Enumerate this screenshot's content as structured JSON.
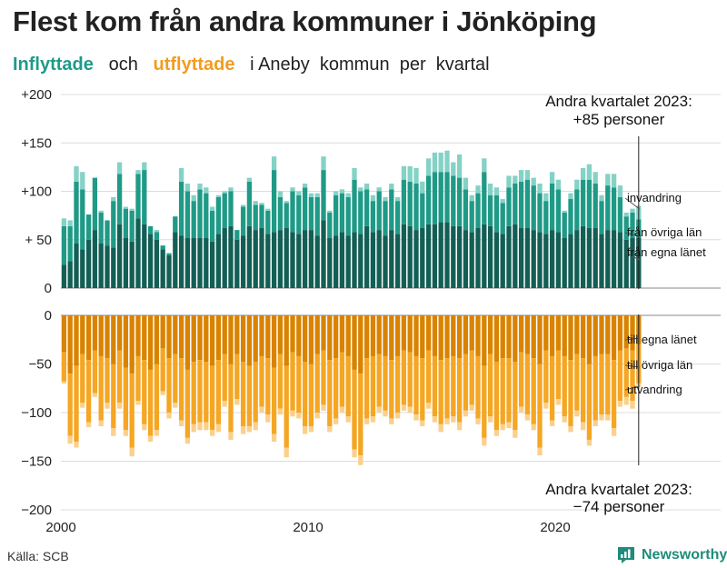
{
  "title": "Flest kom från andra kommuner i Jönköping",
  "subtitle": {
    "in_word": "Inflyttade",
    "and_word": "och",
    "out_word": "utflyttade",
    "rest": "i Aneby  kommun  per  kvartal"
  },
  "source": "Källa: SCB",
  "brand": {
    "name": "Newsworthy",
    "icon": "newsworthy-logo-icon"
  },
  "colors": {
    "in_dark": "#135f55",
    "in_mid": "#1f9a87",
    "in_light": "#84d2c6",
    "out_dark": "#d98300",
    "out_mid": "#f5a623",
    "out_light": "#fbd08c",
    "grid": "#dcdcdc"
  },
  "chart_data": {
    "type": "bar",
    "stacked": true,
    "period": "quarterly, 2000 Q1 – 2023 Q2",
    "xlim": [
      2000,
      2023.5
    ],
    "xticks": [
      "2000",
      "2010",
      "2020"
    ],
    "top_panel": {
      "ylim": [
        0,
        200
      ],
      "yticks": [
        "+200",
        "+150",
        "+100",
        "+ 50",
        "0"
      ]
    },
    "bottom_panel": {
      "ylim": [
        -200,
        0
      ],
      "yticks": [
        "0",
        "−50",
        "−100",
        "−150",
        "−200"
      ]
    },
    "in_categories": [
      "från egna länet",
      "från övriga län",
      "invandring"
    ],
    "out_categories": [
      "till egna länet",
      "till övriga län",
      "utvandring"
    ],
    "in_total": [
      72,
      70,
      126,
      120,
      74,
      110,
      80,
      68,
      94,
      130,
      84,
      82,
      122,
      130,
      60,
      60,
      42,
      36,
      74,
      124,
      108,
      96,
      108,
      104,
      84,
      96,
      100,
      104,
      60,
      86,
      114,
      90,
      88,
      82,
      136,
      100,
      90,
      104,
      100,
      108,
      98,
      98,
      136,
      80,
      100,
      102,
      98,
      124,
      104,
      108,
      96,
      104,
      94,
      108,
      94,
      126,
      126,
      124,
      110,
      134,
      140,
      140,
      142,
      130,
      138,
      114,
      96,
      106,
      134,
      108,
      104,
      92,
      116,
      116,
      122,
      122,
      114,
      108,
      98,
      120,
      112,
      80,
      98,
      112,
      124,
      128,
      120,
      96,
      118,
      118,
      106,
      78,
      82,
      85
    ],
    "in_egna": [
      24,
      28,
      46,
      40,
      50,
      60,
      46,
      44,
      42,
      66,
      52,
      48,
      72,
      66,
      56,
      50,
      40,
      34,
      58,
      54,
      52,
      52,
      52,
      52,
      48,
      56,
      62,
      64,
      50,
      54,
      64,
      60,
      62,
      56,
      58,
      60,
      62,
      58,
      56,
      60,
      60,
      54,
      70,
      52,
      54,
      58,
      54,
      58,
      56,
      64,
      58,
      60,
      54,
      60,
      56,
      66,
      64,
      60,
      62,
      66,
      66,
      68,
      68,
      64,
      64,
      60,
      58,
      62,
      66,
      64,
      58,
      56,
      64,
      66,
      62,
      62,
      60,
      58,
      56,
      60,
      58,
      52,
      56,
      60,
      64,
      62,
      62,
      56,
      60,
      60,
      58,
      50,
      52,
      52
    ],
    "in_ovriga": [
      40,
      36,
      64,
      62,
      26,
      54,
      32,
      26,
      48,
      52,
      30,
      32,
      46,
      56,
      8,
      8,
      4,
      2,
      16,
      56,
      48,
      38,
      50,
      46,
      32,
      38,
      36,
      36,
      10,
      30,
      46,
      26,
      24,
      24,
      64,
      34,
      26,
      42,
      40,
      44,
      34,
      40,
      52,
      26,
      42,
      40,
      40,
      54,
      44,
      38,
      32,
      40,
      36,
      42,
      34,
      46,
      46,
      48,
      36,
      50,
      54,
      52,
      52,
      52,
      50,
      42,
      32,
      36,
      54,
      32,
      38,
      32,
      40,
      42,
      48,
      50,
      46,
      40,
      34,
      48,
      44,
      26,
      36,
      42,
      48,
      50,
      46,
      34,
      46,
      44,
      36,
      24,
      26,
      19
    ],
    "out_total": [
      -70,
      -132,
      -136,
      -95,
      -115,
      -84,
      -114,
      -96,
      -124,
      -96,
      -124,
      -145,
      -92,
      -118,
      -130,
      -124,
      -82,
      -106,
      -95,
      -114,
      -132,
      -120,
      -118,
      -118,
      -124,
      -120,
      -94,
      -128,
      -92,
      -122,
      -120,
      -118,
      -100,
      -110,
      -130,
      -102,
      -146,
      -104,
      -106,
      -122,
      -120,
      -106,
      -98,
      -120,
      -112,
      -100,
      -110,
      -146,
      -154,
      -112,
      -110,
      -100,
      -104,
      -112,
      -106,
      -98,
      -100,
      -108,
      -114,
      -96,
      -110,
      -120,
      -112,
      -110,
      -118,
      -104,
      -98,
      -112,
      -134,
      -110,
      -124,
      -118,
      -116,
      -126,
      -100,
      -108,
      -118,
      -144,
      -96,
      -114,
      -92,
      -110,
      -120,
      -104,
      -118,
      -134,
      -114,
      -108,
      -108,
      -124,
      -94,
      -92,
      -96,
      -74
    ],
    "out_egna": [
      -38,
      -60,
      -52,
      -40,
      -46,
      -36,
      -42,
      -44,
      -50,
      -36,
      -54,
      -60,
      -42,
      -46,
      -56,
      -50,
      -34,
      -44,
      -40,
      -44,
      -56,
      -48,
      -46,
      -48,
      -52,
      -46,
      -40,
      -50,
      -40,
      -48,
      -52,
      -48,
      -42,
      -44,
      -54,
      -40,
      -52,
      -38,
      -42,
      -48,
      -50,
      -40,
      -36,
      -46,
      -44,
      -38,
      -42,
      -56,
      -60,
      -44,
      -42,
      -40,
      -42,
      -46,
      -42,
      -36,
      -38,
      -42,
      -44,
      -36,
      -42,
      -46,
      -44,
      -42,
      -44,
      -40,
      -36,
      -42,
      -52,
      -40,
      -48,
      -44,
      -44,
      -48,
      -38,
      -40,
      -44,
      -50,
      -36,
      -42,
      -36,
      -42,
      -46,
      -40,
      -44,
      -50,
      -42,
      -40,
      -40,
      -46,
      -36,
      -34,
      -36,
      -30
    ],
    "out_ovriga": [
      -30,
      -64,
      -78,
      -50,
      -64,
      -44,
      -66,
      -46,
      -66,
      -54,
      -64,
      -76,
      -46,
      -66,
      -68,
      -68,
      -44,
      -56,
      -50,
      -64,
      -70,
      -64,
      -64,
      -62,
      -66,
      -66,
      -48,
      -70,
      -46,
      -66,
      -62,
      -62,
      -52,
      -58,
      -68,
      -56,
      -84,
      -60,
      -58,
      -66,
      -64,
      -60,
      -56,
      -68,
      -62,
      -56,
      -62,
      -82,
      -84,
      -62,
      -62,
      -54,
      -56,
      -60,
      -58,
      -56,
      -56,
      -60,
      -64,
      -54,
      -62,
      -66,
      -62,
      -62,
      -66,
      -58,
      -56,
      -64,
      -74,
      -64,
      -70,
      -68,
      -66,
      -70,
      -56,
      -62,
      -68,
      -86,
      -54,
      -66,
      -50,
      -62,
      -68,
      -58,
      -66,
      -78,
      -66,
      -62,
      -62,
      -70,
      -52,
      -50,
      -52,
      -40
    ],
    "annotations": {
      "top": [
        "Andra kvartalet 2023:",
        "+85 personer"
      ],
      "bottom": [
        "Andra kvartalet 2023:",
        "−74 personer"
      ]
    },
    "grid": true
  }
}
